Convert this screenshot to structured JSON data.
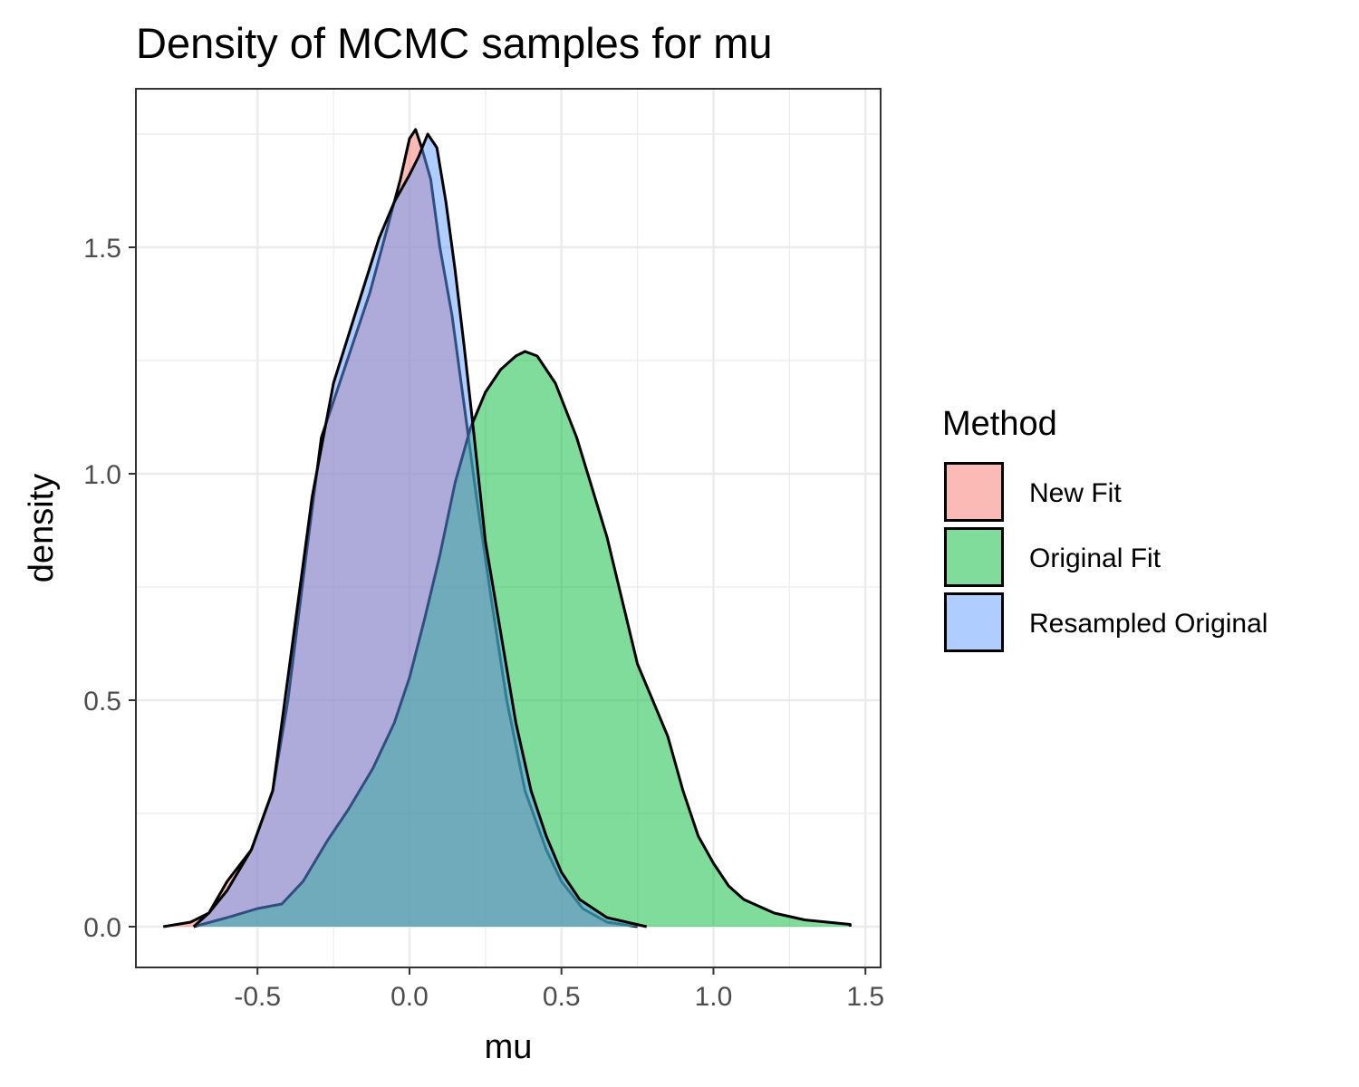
{
  "chart_data": {
    "type": "area",
    "title": "Density of MCMC samples for mu",
    "xlabel": "mu",
    "ylabel": "density",
    "xlim": [
      -0.9,
      1.55
    ],
    "ylim": [
      -0.09,
      1.85
    ],
    "x_ticks": [
      -0.5,
      0.0,
      0.5,
      1.0,
      1.5
    ],
    "x_tick_labels": [
      "-0.5",
      "0.0",
      "0.5",
      "1.0",
      "1.5"
    ],
    "y_ticks": [
      0.0,
      0.5,
      1.0,
      1.5
    ],
    "y_tick_labels": [
      "0.0",
      "0.5",
      "1.0",
      "1.5"
    ],
    "grid": true,
    "legend": {
      "title": "Method",
      "placement": "right"
    },
    "series": [
      {
        "name": "New Fit",
        "color": "#F8766D",
        "points": [
          [
            -0.81,
            0.0
          ],
          [
            -0.72,
            0.01
          ],
          [
            -0.66,
            0.03
          ],
          [
            -0.6,
            0.1
          ],
          [
            -0.52,
            0.17
          ],
          [
            -0.45,
            0.3
          ],
          [
            -0.4,
            0.5
          ],
          [
            -0.34,
            0.82
          ],
          [
            -0.29,
            1.08
          ],
          [
            -0.2,
            1.26
          ],
          [
            -0.13,
            1.4
          ],
          [
            -0.07,
            1.55
          ],
          [
            -0.03,
            1.65
          ],
          [
            0.0,
            1.74
          ],
          [
            0.02,
            1.76
          ],
          [
            0.04,
            1.72
          ],
          [
            0.07,
            1.65
          ],
          [
            0.1,
            1.5
          ],
          [
            0.14,
            1.35
          ],
          [
            0.18,
            1.15
          ],
          [
            0.22,
            0.95
          ],
          [
            0.27,
            0.72
          ],
          [
            0.32,
            0.5
          ],
          [
            0.38,
            0.3
          ],
          [
            0.45,
            0.17
          ],
          [
            0.5,
            0.1
          ],
          [
            0.57,
            0.04
          ],
          [
            0.65,
            0.01
          ],
          [
            0.75,
            0.0
          ]
        ]
      },
      {
        "name": "Original Fit",
        "color": "#00BA38",
        "points": [
          [
            -0.71,
            0.0
          ],
          [
            -0.6,
            0.02
          ],
          [
            -0.5,
            0.04
          ],
          [
            -0.42,
            0.05
          ],
          [
            -0.35,
            0.1
          ],
          [
            -0.27,
            0.19
          ],
          [
            -0.2,
            0.26
          ],
          [
            -0.12,
            0.35
          ],
          [
            -0.05,
            0.45
          ],
          [
            0.0,
            0.55
          ],
          [
            0.05,
            0.68
          ],
          [
            0.1,
            0.82
          ],
          [
            0.15,
            0.98
          ],
          [
            0.2,
            1.1
          ],
          [
            0.25,
            1.18
          ],
          [
            0.3,
            1.23
          ],
          [
            0.35,
            1.26
          ],
          [
            0.38,
            1.27
          ],
          [
            0.42,
            1.26
          ],
          [
            0.48,
            1.2
          ],
          [
            0.55,
            1.08
          ],
          [
            0.6,
            0.97
          ],
          [
            0.65,
            0.86
          ],
          [
            0.7,
            0.72
          ],
          [
            0.75,
            0.58
          ],
          [
            0.8,
            0.5
          ],
          [
            0.85,
            0.42
          ],
          [
            0.9,
            0.3
          ],
          [
            0.95,
            0.2
          ],
          [
            1.0,
            0.14
          ],
          [
            1.05,
            0.09
          ],
          [
            1.1,
            0.06
          ],
          [
            1.2,
            0.03
          ],
          [
            1.3,
            0.015
          ],
          [
            1.45,
            0.005
          ]
        ]
      },
      {
        "name": "Resampled Original",
        "color": "#619CFF",
        "points": [
          [
            -0.71,
            0.0
          ],
          [
            -0.66,
            0.03
          ],
          [
            -0.6,
            0.08
          ],
          [
            -0.52,
            0.17
          ],
          [
            -0.45,
            0.3
          ],
          [
            -0.38,
            0.65
          ],
          [
            -0.32,
            0.95
          ],
          [
            -0.25,
            1.2
          ],
          [
            -0.18,
            1.35
          ],
          [
            -0.1,
            1.52
          ],
          [
            -0.05,
            1.6
          ],
          [
            0.0,
            1.66
          ],
          [
            0.03,
            1.7
          ],
          [
            0.06,
            1.75
          ],
          [
            0.09,
            1.72
          ],
          [
            0.12,
            1.6
          ],
          [
            0.15,
            1.45
          ],
          [
            0.18,
            1.28
          ],
          [
            0.21,
            1.1
          ],
          [
            0.25,
            0.85
          ],
          [
            0.3,
            0.65
          ],
          [
            0.35,
            0.45
          ],
          [
            0.4,
            0.3
          ],
          [
            0.45,
            0.2
          ],
          [
            0.5,
            0.12
          ],
          [
            0.56,
            0.06
          ],
          [
            0.65,
            0.02
          ],
          [
            0.78,
            0.0
          ]
        ]
      }
    ]
  }
}
